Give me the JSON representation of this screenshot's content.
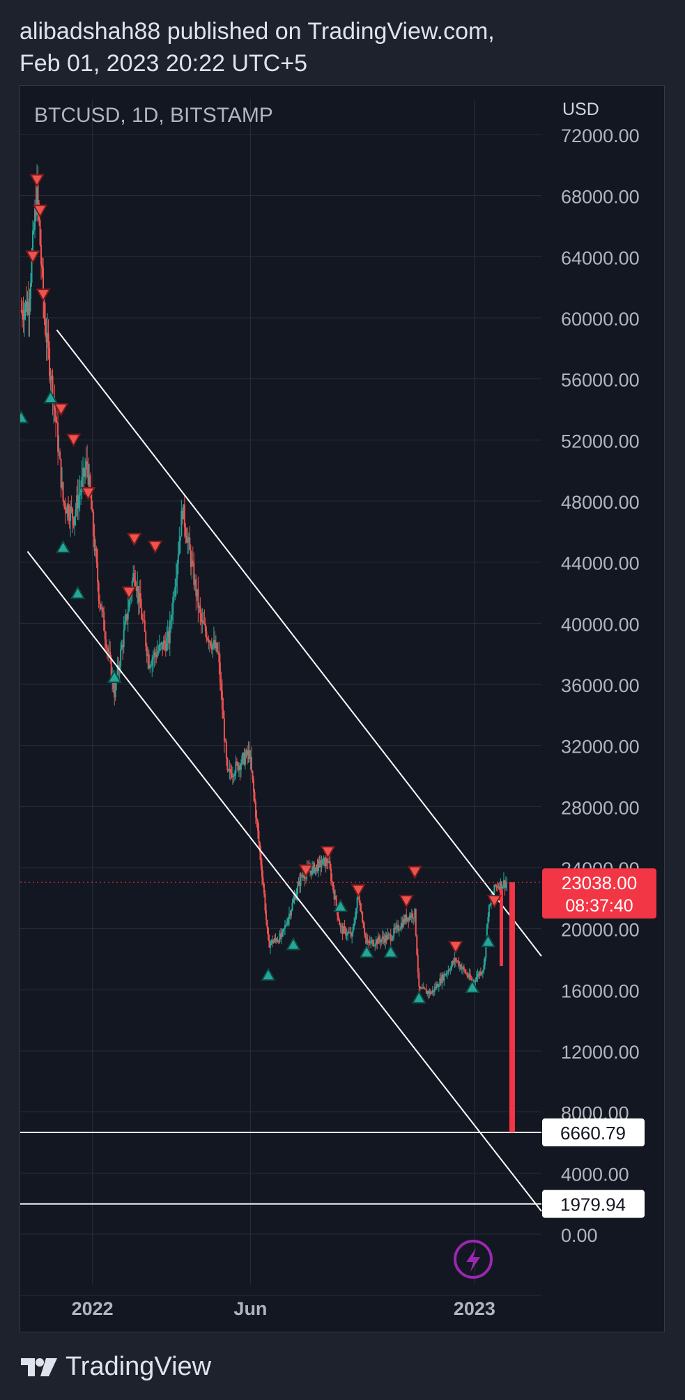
{
  "header": {
    "line1": "alibadshah88 published on TradingView.com,",
    "line2": "Feb 01, 2023 20:22 UTC+5"
  },
  "footer": {
    "brand": "TradingView",
    "logo_icon": "tradingview-logo-icon"
  },
  "colors": {
    "background": "#131722",
    "page": "#1e222d",
    "grid": "#2a2e39",
    "up": "#26a69a",
    "down": "#ef5350",
    "accent_red": "#f23645",
    "trendline": "#ffffff",
    "bolt": "#9c27b0"
  },
  "chart_data": {
    "type": "candlestick",
    "title": "BTCUSD, 1D, BITSTAMP",
    "currency_label": "USD",
    "ylim": [
      0,
      72000
    ],
    "y_ticks": [
      "72000.00",
      "68000.00",
      "64000.00",
      "60000.00",
      "56000.00",
      "52000.00",
      "48000.00",
      "44000.00",
      "40000.00",
      "36000.00",
      "32000.00",
      "28000.00",
      "24000.00",
      "20000.00",
      "16000.00",
      "12000.00",
      "8000.00",
      "4000.00",
      "0.00"
    ],
    "x_ticks": [
      {
        "label": "2022",
        "date": "2022-01-01"
      },
      {
        "label": "Jun",
        "date": "2022-06-01"
      },
      {
        "label": "2023",
        "date": "2023-01-01"
      }
    ],
    "xlim": [
      "2021-10-24",
      "2023-03-06"
    ],
    "price_path": [
      [
        "2021-10-25",
        60500
      ],
      [
        "2021-11-01",
        61000
      ],
      [
        "2021-11-09",
        68500
      ],
      [
        "2021-11-16",
        60000
      ],
      [
        "2021-11-26",
        54000
      ],
      [
        "2021-12-04",
        48000
      ],
      [
        "2021-12-14",
        47000
      ],
      [
        "2021-12-27",
        50500
      ],
      [
        "2022-01-07",
        42000
      ],
      [
        "2022-01-22",
        35500
      ],
      [
        "2022-02-10",
        43500
      ],
      [
        "2022-02-24",
        37500
      ],
      [
        "2022-03-15",
        39000
      ],
      [
        "2022-03-28",
        47500
      ],
      [
        "2022-04-15",
        40000
      ],
      [
        "2022-05-01",
        38000
      ],
      [
        "2022-05-10",
        30000
      ],
      [
        "2022-05-31",
        31500
      ],
      [
        "2022-06-13",
        23000
      ],
      [
        "2022-06-18",
        19000
      ],
      [
        "2022-07-01",
        19500
      ],
      [
        "2022-07-20",
        23500
      ],
      [
        "2022-08-14",
        24500
      ],
      [
        "2022-08-26",
        20000
      ],
      [
        "2022-09-06",
        19500
      ],
      [
        "2022-09-12",
        22300
      ],
      [
        "2022-09-20",
        19000
      ],
      [
        "2022-10-13",
        19500
      ],
      [
        "2022-10-29",
        20800
      ],
      [
        "2022-11-05",
        21000
      ],
      [
        "2022-11-09",
        16000
      ],
      [
        "2022-11-21",
        15800
      ],
      [
        "2022-12-14",
        18000
      ],
      [
        "2022-12-30",
        16500
      ],
      [
        "2023-01-10",
        17500
      ],
      [
        "2023-01-14",
        21000
      ],
      [
        "2023-01-21",
        22800
      ],
      [
        "2023-02-01",
        23038
      ]
    ],
    "sell_signals": [
      [
        "2021-11-09",
        69000
      ],
      [
        "2021-11-05",
        64000
      ],
      [
        "2021-11-12",
        67000
      ],
      [
        "2021-11-15",
        61500
      ],
      [
        "2021-12-02",
        54000
      ],
      [
        "2021-12-14",
        52000
      ],
      [
        "2021-12-28",
        48500
      ],
      [
        "2022-02-10",
        45500
      ],
      [
        "2022-03-02",
        45000
      ],
      [
        "2022-02-05",
        42000
      ],
      [
        "2022-07-24",
        23800
      ],
      [
        "2022-08-14",
        25000
      ],
      [
        "2022-09-12",
        22500
      ],
      [
        "2022-10-28",
        21800
      ],
      [
        "2022-11-05",
        23700
      ],
      [
        "2022-12-14",
        18800
      ],
      [
        "2023-01-20",
        21800
      ]
    ],
    "buy_signals": [
      [
        "2021-10-25",
        53500
      ],
      [
        "2021-11-22",
        54800
      ],
      [
        "2021-12-04",
        45000
      ],
      [
        "2021-12-18",
        42000
      ],
      [
        "2022-01-22",
        36500
      ],
      [
        "2022-06-18",
        17000
      ],
      [
        "2022-07-12",
        19000
      ],
      [
        "2022-08-26",
        21500
      ],
      [
        "2022-09-20",
        18500
      ],
      [
        "2022-10-13",
        18500
      ],
      [
        "2022-11-09",
        15500
      ],
      [
        "2022-12-30",
        16200
      ],
      [
        "2023-01-14",
        19200
      ]
    ],
    "channel_lines": [
      {
        "from": [
          "2021-11-28",
          59200
        ],
        "to": [
          "2023-03-06",
          18200
        ]
      },
      {
        "from": [
          "2021-10-31",
          44700
        ],
        "to": [
          "2023-03-06",
          1500
        ]
      }
    ],
    "horizontal_levels": [
      {
        "price": 6660.79,
        "label": "6660.79"
      },
      {
        "price": 1979.94,
        "label": "1979.94"
      }
    ],
    "projection_bar": {
      "date": "2023-02-06",
      "from": 23038,
      "to": 6660.79
    },
    "last_price": {
      "value": 23038,
      "label": "23038.00",
      "countdown": "08:37:40"
    }
  }
}
